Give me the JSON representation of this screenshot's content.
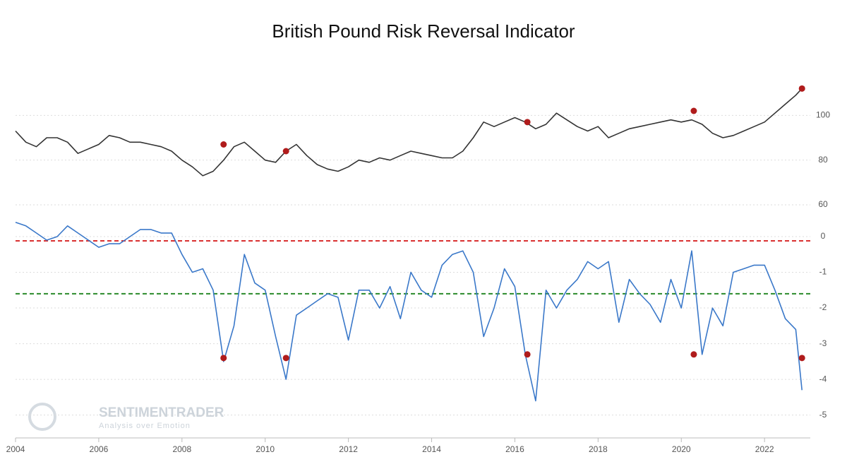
{
  "chart_data": [
    {
      "type": "line",
      "title": "British Pound Risk Reversal Indicator",
      "x": [
        2004.0,
        2004.25,
        2004.5,
        2004.75,
        2005.0,
        2005.25,
        2005.5,
        2005.75,
        2006.0,
        2006.25,
        2006.5,
        2006.75,
        2007.0,
        2007.25,
        2007.5,
        2007.75,
        2008.0,
        2008.25,
        2008.5,
        2008.75,
        2009.0,
        2009.25,
        2009.5,
        2009.75,
        2010.0,
        2010.25,
        2010.5,
        2010.75,
        2011.0,
        2011.25,
        2011.5,
        2011.75,
        2012.0,
        2012.25,
        2012.5,
        2012.75,
        2013.0,
        2013.25,
        2013.5,
        2013.75,
        2014.0,
        2014.25,
        2014.5,
        2014.75,
        2015.0,
        2015.25,
        2015.5,
        2015.75,
        2016.0,
        2016.25,
        2016.5,
        2016.75,
        2017.0,
        2017.25,
        2017.5,
        2017.75,
        2018.0,
        2018.25,
        2018.5,
        2018.75,
        2019.0,
        2019.25,
        2019.5,
        2019.75,
        2020.0,
        2020.25,
        2020.5,
        2020.75,
        2021.0,
        2021.25,
        2021.5,
        2021.75,
        2022.0,
        2022.25,
        2022.5,
        2022.75,
        2022.9
      ],
      "series": [
        {
          "color": "#333333",
          "values": [
            93,
            88,
            86,
            90,
            90,
            88,
            83,
            85,
            87,
            91,
            90,
            88,
            88,
            87,
            86,
            84,
            80,
            77,
            73,
            75,
            80,
            86,
            88,
            84,
            80,
            79,
            84,
            87,
            82,
            78,
            76,
            75,
            77,
            80,
            79,
            81,
            80,
            82,
            84,
            83,
            82,
            81,
            81,
            84,
            90,
            97,
            95,
            97,
            99,
            97,
            94,
            96,
            101,
            98,
            95,
            93,
            95,
            90,
            92,
            94,
            95,
            96,
            97,
            98,
            97,
            98,
            96,
            92,
            90,
            91,
            93,
            95,
            97,
            101,
            105,
            109,
            112
          ]
        }
      ],
      "markers": {
        "color": "#b01c1c",
        "x": [
          2009.0,
          2010.5,
          2016.3,
          2020.3,
          2022.9
        ],
        "values": [
          87,
          84,
          97,
          102,
          112
        ]
      },
      "xlim": [
        2004,
        2023.1
      ],
      "ylim": [
        60,
        120
      ],
      "yticks": [
        60,
        80,
        100
      ],
      "grid": true
    },
    {
      "type": "line",
      "x": [
        2004.0,
        2004.25,
        2004.5,
        2004.75,
        2005.0,
        2005.25,
        2005.5,
        2005.75,
        2006.0,
        2006.25,
        2006.5,
        2006.75,
        2007.0,
        2007.25,
        2007.5,
        2007.75,
        2008.0,
        2008.25,
        2008.5,
        2008.75,
        2009.0,
        2009.25,
        2009.5,
        2009.75,
        2010.0,
        2010.25,
        2010.5,
        2010.75,
        2011.0,
        2011.25,
        2011.5,
        2011.75,
        2012.0,
        2012.25,
        2012.5,
        2012.75,
        2013.0,
        2013.25,
        2013.5,
        2013.75,
        2014.0,
        2014.25,
        2014.5,
        2014.75,
        2015.0,
        2015.25,
        2015.5,
        2015.75,
        2016.0,
        2016.25,
        2016.5,
        2016.75,
        2017.0,
        2017.25,
        2017.5,
        2017.75,
        2018.0,
        2018.25,
        2018.5,
        2018.75,
        2019.0,
        2019.25,
        2019.5,
        2019.75,
        2020.0,
        2020.25,
        2020.5,
        2020.75,
        2021.0,
        2021.25,
        2021.5,
        2021.75,
        2022.0,
        2022.25,
        2022.5,
        2022.75,
        2022.9
      ],
      "series": [
        {
          "color": "#3a78c9",
          "values": [
            0.4,
            0.3,
            0.1,
            -0.1,
            0.0,
            0.3,
            0.1,
            -0.1,
            -0.3,
            -0.2,
            -0.2,
            0.0,
            0.2,
            0.2,
            0.1,
            0.1,
            -0.5,
            -1.0,
            -0.9,
            -1.5,
            -3.5,
            -2.5,
            -0.5,
            -1.3,
            -1.5,
            -2.8,
            -4.0,
            -2.2,
            -2.0,
            -1.8,
            -1.6,
            -1.7,
            -2.9,
            -1.5,
            -1.5,
            -2.0,
            -1.4,
            -2.3,
            -1.0,
            -1.5,
            -1.7,
            -0.8,
            -0.5,
            -0.4,
            -1.0,
            -2.8,
            -2.0,
            -0.9,
            -1.4,
            -3.3,
            -4.6,
            -1.5,
            -2.0,
            -1.5,
            -1.2,
            -0.7,
            -0.9,
            -0.7,
            -2.4,
            -1.2,
            -1.6,
            -1.9,
            -2.4,
            -1.2,
            -2.0,
            -0.4,
            -3.3,
            -2.0,
            -2.5,
            -1.0,
            -0.9,
            -0.8,
            -0.8,
            -1.5,
            -2.3,
            -2.6,
            -4.3
          ]
        }
      ],
      "markers": {
        "color": "#b01c1c",
        "x": [
          2009.0,
          2010.5,
          2016.3,
          2020.3,
          2022.9
        ],
        "values": [
          -3.4,
          -3.4,
          -3.3,
          -3.3,
          -3.4
        ]
      },
      "hlines": [
        {
          "value": -0.12,
          "color": "#d93030"
        },
        {
          "value": -1.6,
          "color": "#2a8a2a"
        }
      ],
      "watermark": {
        "title": "SENTIMENTRADER",
        "subtitle": "Analysis over Emotion"
      },
      "xlim": [
        2004,
        2023.1
      ],
      "xticks": [
        2004,
        2006,
        2008,
        2010,
        2012,
        2014,
        2016,
        2018,
        2020,
        2022
      ],
      "ylim": [
        -5.6,
        0.7
      ],
      "yticks": [
        0,
        -1,
        -2,
        -3,
        -4,
        -5
      ],
      "grid": true
    }
  ]
}
